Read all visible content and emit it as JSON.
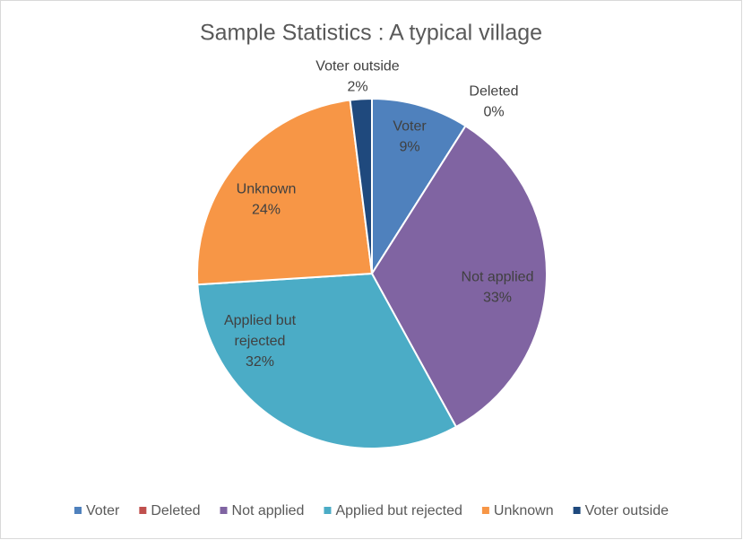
{
  "chart_data": {
    "type": "pie",
    "title": "Sample Statistics : A typical village",
    "categories": [
      "Voter",
      "Deleted",
      "Not applied",
      "Applied but rejected",
      "Unknown",
      "Voter outside"
    ],
    "values": [
      9,
      0,
      33,
      32,
      24,
      2
    ],
    "value_labels": [
      "9%",
      "0%",
      "33%",
      "32%",
      "24%",
      "2%"
    ],
    "colors": [
      "#4f81bd",
      "#c0504d",
      "#8064a2",
      "#4bacc6",
      "#f79646",
      "#1f497d"
    ],
    "legend": "bottom"
  }
}
